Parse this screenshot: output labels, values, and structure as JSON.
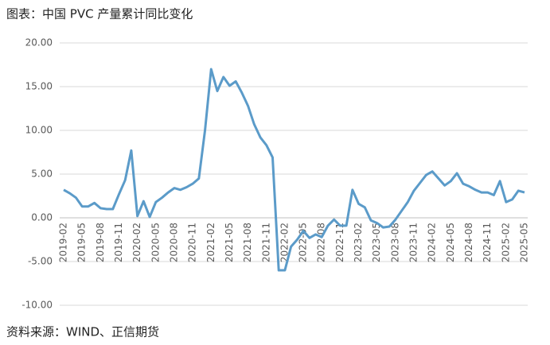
{
  "chart_data": {
    "type": "line",
    "title": "图表：中国 PVC 产量累计同比变化",
    "source": "资料来源：WIND、正信期货",
    "categories": [
      "2019-02",
      null,
      null,
      "2019-05",
      null,
      null,
      "2019-08",
      null,
      null,
      "2019-11",
      null,
      null,
      "2020-02",
      null,
      null,
      "2020-05",
      null,
      null,
      "2020-08",
      null,
      null,
      "2020-11",
      null,
      null,
      "2021-02",
      null,
      null,
      "2021-05",
      null,
      null,
      "2021-08",
      null,
      null,
      "2021-11",
      null,
      null,
      "2022-02",
      null,
      null,
      "2022-05",
      null,
      null,
      "2022-08",
      null,
      null,
      "2022-11",
      null,
      null,
      "2023-02",
      null,
      null,
      "2023-05",
      null,
      null,
      "2023-08",
      null,
      null,
      "2023-11",
      null,
      null,
      "2024-02",
      null,
      null,
      "2024-05",
      null,
      null,
      "2024-08",
      null,
      null,
      "2024-11",
      null,
      null,
      "2025-02",
      null,
      null,
      "2025-05"
    ],
    "series": [
      {
        "color": "#5b9bc9",
        "values": [
          3.2,
          2.8,
          2.3,
          1.3,
          1.3,
          1.7,
          1.1,
          1.0,
          1.0,
          2.7,
          4.3,
          7.7,
          0.2,
          1.9,
          0.1,
          1.8,
          2.3,
          2.9,
          3.4,
          3.2,
          3.5,
          3.9,
          4.5,
          10.0,
          17.0,
          14.5,
          16.1,
          15.1,
          15.6,
          14.3,
          12.8,
          10.7,
          9.2,
          8.3,
          6.9,
          -6.0,
          -6.0,
          -3.3,
          -2.5,
          -1.5,
          -2.3,
          -1.9,
          -2.2,
          -0.9,
          -0.2,
          -0.9,
          -0.9,
          3.2,
          1.6,
          1.2,
          -0.3,
          -0.6,
          -1.1,
          -1.0,
          -0.2,
          0.8,
          1.8,
          3.1,
          4.0,
          4.9,
          5.3,
          4.5,
          3.7,
          4.2,
          5.1,
          3.9,
          3.6,
          3.2,
          2.9,
          2.9,
          2.6,
          4.2,
          1.8,
          2.1,
          3.1,
          2.9
        ]
      }
    ],
    "ylim": [
      -10,
      20
    ],
    "yticks": [
      {
        "value": -10,
        "label": "-10.00"
      },
      {
        "value": -5,
        "label": "-5.00"
      },
      {
        "value": 0,
        "label": "0.00"
      },
      {
        "value": 5,
        "label": "5.00"
      },
      {
        "value": 10,
        "label": "10.00"
      },
      {
        "value": 15,
        "label": "15.00"
      },
      {
        "value": 20,
        "label": "20.00"
      }
    ],
    "grid": true
  }
}
